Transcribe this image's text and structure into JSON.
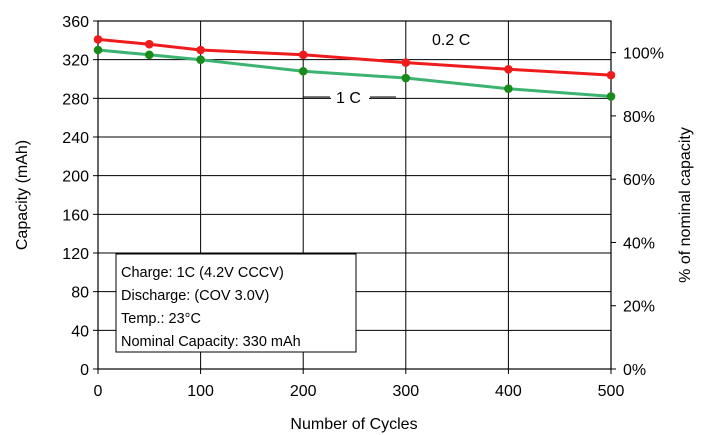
{
  "chart_data": {
    "type": "line",
    "xlabel": "Number of Cycles",
    "ylabel": "Capacity (mAh)",
    "y2label": "% of nominal capacity",
    "xlim": [
      0,
      500
    ],
    "ylim": [
      0,
      360
    ],
    "y2lim": [
      0,
      110
    ],
    "x_ticks": [
      "0",
      "100",
      "200",
      "300",
      "400",
      "500"
    ],
    "y_ticks": [
      "0",
      "40",
      "80",
      "120",
      "160",
      "200",
      "240",
      "280",
      "320",
      "360"
    ],
    "y2_ticks": [
      "0%",
      "20%",
      "40%",
      "60%",
      "80%",
      "100%"
    ],
    "grid": true,
    "series": [
      {
        "name": "0.2 C",
        "color": "#ee1c1c",
        "x": [
          0,
          50,
          100,
          200,
          300,
          400,
          500
        ],
        "values": [
          341,
          336,
          330,
          325,
          317,
          310,
          304
        ]
      },
      {
        "name": "1 C",
        "color": "#3cb371",
        "marker_color": "#1a8a1a",
        "x": [
          0,
          50,
          100,
          200,
          300,
          400,
          500
        ],
        "values": [
          330,
          325,
          320,
          308,
          301,
          290,
          282
        ]
      }
    ],
    "annotation": [
      "Charge: 1C (4.2V CCCV)",
      "Discharge: (COV 3.0V)",
      "Temp.: 23°C",
      "Nominal Capacity: 330 mAh"
    ]
  }
}
